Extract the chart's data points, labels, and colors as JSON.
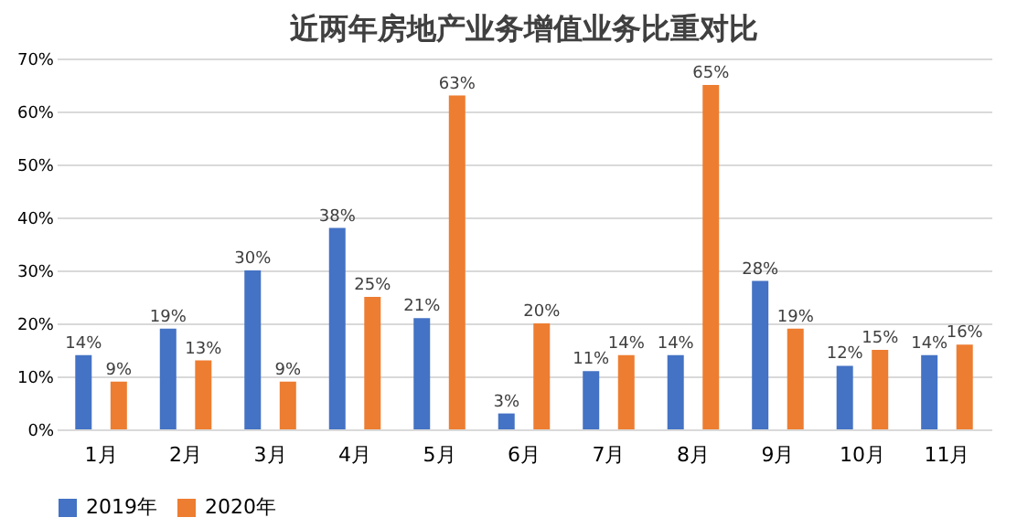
{
  "chart_data": {
    "type": "bar",
    "title": "近两年房地产业务增值业务比重对比",
    "categories": [
      "1月",
      "2月",
      "3月",
      "4月",
      "5月",
      "6月",
      "7月",
      "8月",
      "9月",
      "10月",
      "11月"
    ],
    "series": [
      {
        "name": "2019年",
        "color": "#4472c4",
        "values": [
          14,
          19,
          30,
          38,
          21,
          3,
          11,
          14,
          28,
          12,
          14
        ],
        "value_labels": [
          "14%",
          "19%",
          "30%",
          "38%",
          "21%",
          "3%",
          "11%",
          "14%",
          "28%",
          "12%",
          "14%"
        ]
      },
      {
        "name": "2020年",
        "color": "#ed7d31",
        "values": [
          9,
          13,
          9,
          25,
          63,
          20,
          14,
          65,
          19,
          15,
          16
        ],
        "value_labels": [
          "9%",
          "13%",
          "9%",
          "25%",
          "63%",
          "20%",
          "14%",
          "65%",
          "19%",
          "15%",
          "16%"
        ]
      }
    ],
    "ylim": [
      0,
      70
    ],
    "yticks": [
      {
        "value": 0,
        "label": "0%"
      },
      {
        "value": 10,
        "label": "10%"
      },
      {
        "value": 20,
        "label": "20%"
      },
      {
        "value": 30,
        "label": "30%"
      },
      {
        "value": 40,
        "label": "40%"
      },
      {
        "value": 50,
        "label": "50%"
      },
      {
        "value": 60,
        "label": "60%"
      },
      {
        "value": 70,
        "label": "70%"
      }
    ],
    "grid": "y",
    "legend": "bottom"
  }
}
